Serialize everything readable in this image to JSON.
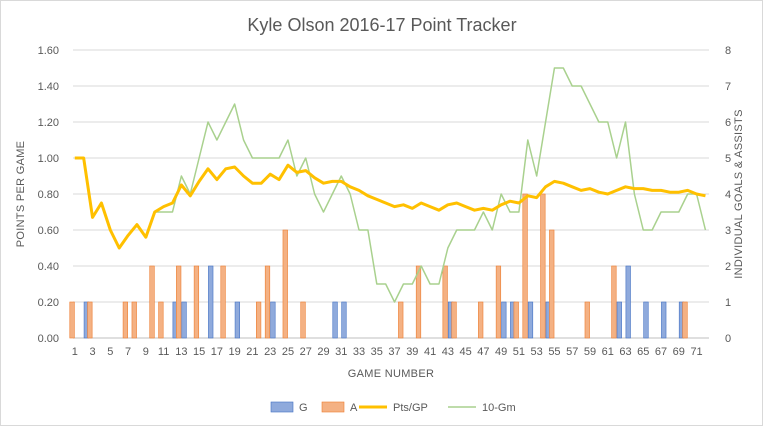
{
  "chart_data": {
    "type": "bar",
    "title": "Kyle Olson 2016-17 Point Tracker",
    "xlabel": "GAME NUMBER",
    "ylabel": "POINTS PER GAME",
    "y2label": "INDIVIDUAL GOALS & ASSISTS",
    "x": [
      1,
      2,
      3,
      4,
      5,
      6,
      7,
      8,
      9,
      10,
      11,
      12,
      13,
      14,
      15,
      16,
      17,
      18,
      19,
      20,
      21,
      22,
      23,
      24,
      25,
      26,
      27,
      28,
      29,
      30,
      31,
      32,
      33,
      34,
      35,
      36,
      37,
      38,
      39,
      40,
      41,
      42,
      43,
      44,
      45,
      46,
      47,
      48,
      49,
      50,
      51,
      52,
      53,
      54,
      55,
      56,
      57,
      58,
      59,
      60,
      61,
      62,
      63,
      64,
      65,
      66,
      67,
      68,
      69,
      70,
      71,
      72
    ],
    "xticks": [
      1,
      3,
      5,
      7,
      9,
      11,
      13,
      15,
      17,
      19,
      21,
      23,
      25,
      27,
      29,
      31,
      33,
      35,
      37,
      39,
      41,
      43,
      45,
      47,
      49,
      51,
      53,
      55,
      57,
      59,
      61,
      63,
      65,
      67,
      69,
      71
    ],
    "ylim": [
      0,
      1.6
    ],
    "yticks": [
      "0.00",
      "0.20",
      "0.40",
      "0.60",
      "0.80",
      "1.00",
      "1.20",
      "1.40",
      "1.60"
    ],
    "y2lim": [
      0,
      8
    ],
    "y2ticks": [
      "0",
      "1",
      "2",
      "3",
      "4",
      "5",
      "6",
      "7",
      "8"
    ],
    "colors": {
      "goals": "#8faadc",
      "goals_edge": "#4472c4",
      "assists": "#f4b183",
      "assists_edge": "#ed7d31",
      "ppg": "#ffc000",
      "tengm": "#a9d18e"
    },
    "series": [
      {
        "name": "G",
        "kind": "bar",
        "axis": "secondary",
        "values": [
          0,
          1,
          0,
          0,
          0,
          0,
          0,
          0,
          0,
          0,
          0,
          1,
          1,
          0,
          0,
          2,
          0,
          0,
          1,
          0,
          0,
          0,
          1,
          0,
          0,
          0,
          0,
          0,
          0,
          1,
          1,
          0,
          0,
          0,
          0,
          0,
          0,
          0,
          0,
          0,
          0,
          0,
          1,
          0,
          0,
          0,
          0,
          0,
          1,
          1,
          0,
          1,
          0,
          1,
          0,
          0,
          0,
          0,
          0,
          0,
          0,
          1,
          2,
          0,
          1,
          0,
          1,
          0,
          1,
          0,
          0,
          0
        ]
      },
      {
        "name": "A",
        "kind": "bar",
        "axis": "secondary",
        "values": [
          1,
          0,
          1,
          0,
          0,
          0,
          1,
          1,
          0,
          2,
          1,
          0,
          2,
          0,
          2,
          0,
          0,
          2,
          0,
          0,
          0,
          1,
          2,
          0,
          3,
          0,
          1,
          0,
          0,
          0,
          0,
          0,
          0,
          0,
          0,
          0,
          0,
          1,
          0,
          2,
          0,
          0,
          2,
          1,
          0,
          0,
          1,
          0,
          2,
          0,
          1,
          4,
          0,
          4,
          3,
          0,
          0,
          0,
          1,
          0,
          0,
          2,
          0,
          0,
          0,
          0,
          0,
          0,
          0,
          1,
          0,
          0
        ]
      },
      {
        "name": "Pts/GP",
        "kind": "line",
        "axis": "primary",
        "values": [
          1.0,
          1.0,
          0.67,
          0.75,
          0.6,
          0.5,
          0.57,
          0.63,
          0.56,
          0.7,
          0.73,
          0.75,
          0.85,
          0.79,
          0.87,
          0.94,
          0.88,
          0.94,
          0.95,
          0.9,
          0.86,
          0.86,
          0.91,
          0.88,
          0.96,
          0.92,
          0.93,
          0.89,
          0.86,
          0.87,
          0.87,
          0.84,
          0.82,
          0.79,
          0.77,
          0.75,
          0.73,
          0.74,
          0.72,
          0.75,
          0.73,
          0.71,
          0.74,
          0.75,
          0.73,
          0.71,
          0.72,
          0.71,
          0.74,
          0.76,
          0.75,
          0.79,
          0.78,
          0.84,
          0.87,
          0.86,
          0.84,
          0.82,
          0.83,
          0.81,
          0.8,
          0.82,
          0.84,
          0.83,
          0.83,
          0.82,
          0.82,
          0.81,
          0.81,
          0.82,
          0.8,
          0.79
        ]
      },
      {
        "name": "10-Gm",
        "kind": "line",
        "axis": "secondary",
        "values": [
          null,
          null,
          null,
          null,
          null,
          null,
          null,
          null,
          null,
          3.5,
          3.5,
          3.5,
          4.5,
          4,
          5,
          6,
          5.5,
          6,
          6.5,
          5.5,
          5,
          5,
          5,
          5,
          5.5,
          4.5,
          5,
          4,
          3.5,
          4,
          4.5,
          4,
          3,
          3,
          1.5,
          1.5,
          1,
          1.5,
          1.5,
          2,
          1.5,
          1.5,
          2.5,
          3,
          3,
          3,
          3.5,
          3,
          4,
          3.5,
          3.5,
          5.5,
          4.5,
          6,
          7.5,
          7.5,
          7,
          7,
          6.5,
          6,
          6,
          5,
          6,
          4,
          3,
          3,
          3.5,
          3.5,
          3.5,
          4,
          4,
          3
        ]
      }
    ],
    "legend": [
      "G",
      "A",
      "Pts/GP",
      "10-Gm"
    ],
    "legend_position": "bottom",
    "grid": true
  }
}
